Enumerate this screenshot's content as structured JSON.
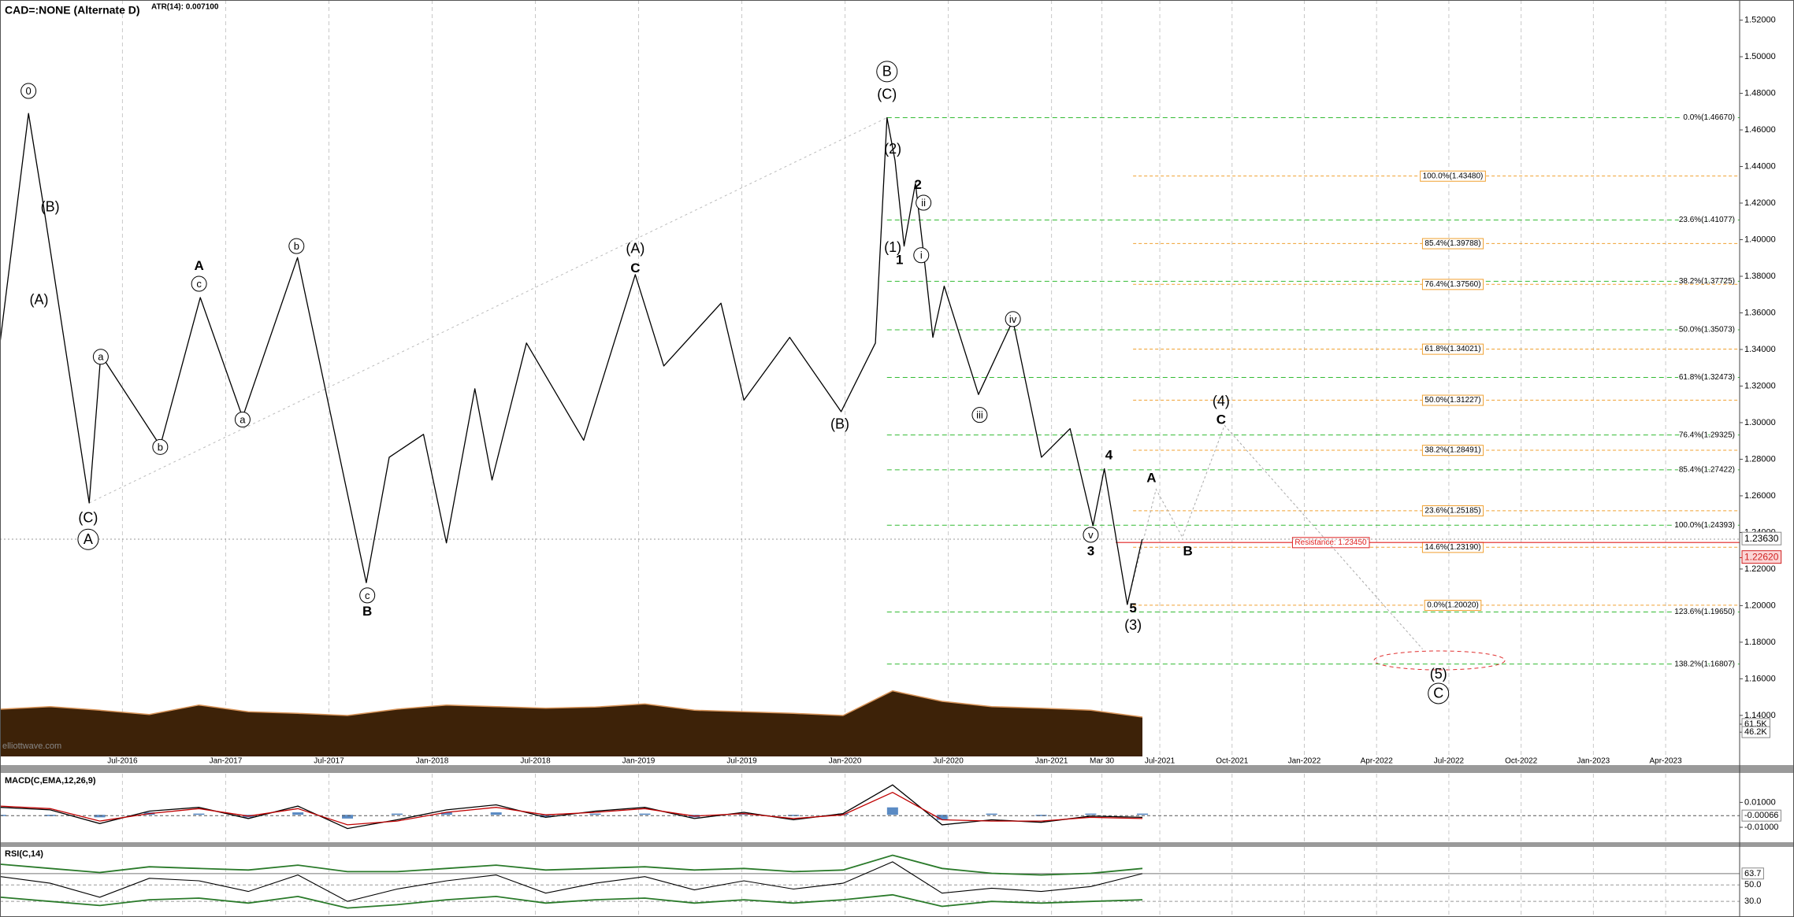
{
  "chart_data": [
    {
      "type": "line",
      "title": "CAD=:NONE (Alternate D)",
      "indicator": "ATR(14): 0.007100",
      "watermark": "elliottwave.com",
      "color": "#000000",
      "x": [
        2015.907,
        2016.045,
        2016.118,
        2016.339,
        2016.395,
        2016.683,
        2016.877,
        2017.082,
        2017.348,
        2017.681,
        2017.792,
        2017.958,
        2018.069,
        2018.207,
        2018.29,
        2018.457,
        2018.734,
        2018.984,
        2019.122,
        2019.399,
        2019.51,
        2019.732,
        2019.981,
        2020.147,
        2020.203,
        2020.242,
        2020.286,
        2020.341,
        2020.386,
        2020.425,
        2020.48,
        2020.646,
        2020.813,
        2020.951,
        2021.09,
        2021.201,
        2021.256,
        2021.367,
        2021.439
      ],
      "values": [
        1.3435,
        1.469,
        1.4183,
        1.2561,
        1.3372,
        1.2873,
        1.3684,
        1.3029,
        1.3902,
        1.2125,
        1.2811,
        1.2936,
        1.2343,
        1.3185,
        1.2686,
        1.3435,
        1.2904,
        1.3809,
        1.331,
        1.3653,
        1.3123,
        1.3466,
        1.306,
        1.3435,
        1.4667,
        1.4433,
        1.3965,
        1.4308,
        1.3871,
        1.3466,
        1.3746,
        1.3154,
        1.3559,
        1.2811,
        1.2967,
        1.2437,
        1.2748,
        1.2006,
        1.2363
      ],
      "xlim": [
        2015.907,
        2023.506
      ],
      "xticks": [
        {
          "value": 2016.5,
          "label": "Jul-2016"
        },
        {
          "value": 2017,
          "label": "Jan-2017"
        },
        {
          "value": 2017.5,
          "label": "Jul-2017"
        },
        {
          "value": 2018,
          "label": "Jan-2018"
        },
        {
          "value": 2018.5,
          "label": "Jul-2018"
        },
        {
          "value": 2019,
          "label": "Jan-2019"
        },
        {
          "value": 2019.5,
          "label": "Jul-2019"
        },
        {
          "value": 2020,
          "label": "Jan-2020"
        },
        {
          "value": 2020.5,
          "label": "Jul-2020"
        },
        {
          "value": 2021,
          "label": "Jan-2021"
        },
        {
          "value": 2021.244,
          "label": "Mar 30"
        },
        {
          "value": 2021.5,
          "label": "Jul-2021"
        },
        {
          "value": 2021.75,
          "label": "Oct-2021"
        },
        {
          "value": 2022,
          "label": "Jan-2022"
        },
        {
          "value": 2022.25,
          "label": "Apr-2022"
        },
        {
          "value": 2022.5,
          "label": "Jul-2022"
        },
        {
          "value": 2022.75,
          "label": "Oct-2022"
        },
        {
          "value": 2023,
          "label": "Jan-2023"
        },
        {
          "value": 2023.25,
          "label": "Apr-2023"
        }
      ],
      "ylim": [
        1.118,
        1.531
      ],
      "yticks": [
        {
          "value": 1.14,
          "label": "1.14000"
        },
        {
          "value": 1.16,
          "label": "1.16000"
        },
        {
          "value": 1.18,
          "label": "1.18000"
        },
        {
          "value": 1.2,
          "label": "1.20000"
        },
        {
          "value": 1.22,
          "label": "1.22000"
        },
        {
          "value": 1.24,
          "label": "1.24000"
        },
        {
          "value": 1.26,
          "label": "1.26000"
        },
        {
          "value": 1.28,
          "label": "1.28000"
        },
        {
          "value": 1.3,
          "label": "1.30000"
        },
        {
          "value": 1.32,
          "label": "1.32000"
        },
        {
          "value": 1.34,
          "label": "1.34000"
        },
        {
          "value": 1.36,
          "label": "1.36000"
        },
        {
          "value": 1.38,
          "label": "1.38000"
        },
        {
          "value": 1.4,
          "label": "1.40000"
        },
        {
          "value": 1.42,
          "label": "1.42000"
        },
        {
          "value": 1.44,
          "label": "1.44000"
        },
        {
          "value": 1.46,
          "label": "1.46000"
        },
        {
          "value": 1.48,
          "label": "1.48000"
        },
        {
          "value": 1.5,
          "label": "1.50000"
        },
        {
          "value": 1.52,
          "label": "1.52000"
        }
      ],
      "last": {
        "value": 1.2363,
        "label": "1.23630"
      },
      "marker": {
        "value": 1.2262,
        "label": "1.22620",
        "color": "#d02020"
      },
      "fib_green": {
        "start": 2020.203,
        "color": "#33bb33",
        "levels": [
          {
            "value": 1.4667,
            "label": "0.0%(1.46670)"
          },
          {
            "value": 1.41077,
            "label": "23.6%(1.41077)"
          },
          {
            "value": 1.37725,
            "label": "38.2%(1.37725)"
          },
          {
            "value": 1.35073,
            "label": "50.0%(1.35073)"
          },
          {
            "value": 1.32473,
            "label": "61.8%(1.32473)"
          },
          {
            "value": 1.29325,
            "label": "76.4%(1.29325)"
          },
          {
            "value": 1.27422,
            "label": "85.4%(1.27422)"
          },
          {
            "value": 1.24393,
            "label": "100.0%(1.24393)"
          },
          {
            "value": 1.1965,
            "label": "123.6%(1.19650)"
          },
          {
            "value": 1.16807,
            "label": "138.2%(1.16807)"
          }
        ]
      },
      "fib_orange": {
        "start": 2021.395,
        "color": "#f0a030",
        "levels": [
          {
            "value": 1.4348,
            "label": "100.0%(1.43480)"
          },
          {
            "value": 1.39788,
            "label": "85.4%(1.39788)"
          },
          {
            "value": 1.3756,
            "label": "76.4%(1.37560)"
          },
          {
            "value": 1.34021,
            "label": "61.8%(1.34021)"
          },
          {
            "value": 1.31227,
            "label": "50.0%(1.31227)"
          },
          {
            "value": 1.28491,
            "label": "38.2%(1.28491)"
          },
          {
            "value": 1.25185,
            "label": "23.6%(1.25185)"
          },
          {
            "value": 1.2319,
            "label": "14.6%(1.23190)"
          },
          {
            "value": 1.2002,
            "label": "0.0%(1.20020)"
          }
        ]
      },
      "resistance": {
        "value": 1.2345,
        "label": "Resistance: 1.23450",
        "start": 2021.311,
        "color": "#e02020"
      },
      "trendlines": [
        {
          "x": [
            2016.339,
            2020.203
          ],
          "values": [
            1.2561,
            1.4667
          ]
        }
      ],
      "projection": {
        "x": [
          2021.367,
          2021.487,
          2021.578,
          2021.724,
          2022.409
        ],
        "values": [
          1.2006,
          1.2636,
          1.2374,
          1.2985,
          1.1763
        ],
        "color": "#aaaaaa"
      },
      "volume": {
        "color": "#3d2208",
        "edge_color": "#d9955a",
        "x": [
          2015.91,
          2016.15,
          2016.39,
          2016.63,
          2016.87,
          2017.11,
          2017.35,
          2017.59,
          2017.83,
          2018.07,
          2018.31,
          2018.55,
          2018.79,
          2019.03,
          2019.27,
          2019.51,
          2019.75,
          2019.99,
          2020.23,
          2020.47,
          2020.71,
          2020.95,
          2021.19,
          2021.44
        ],
        "values": [
          90000,
          95000,
          88000,
          80000,
          98000,
          85000,
          82000,
          78000,
          90000,
          98000,
          95000,
          92000,
          94000,
          100000,
          88000,
          85000,
          82000,
          78000,
          125000,
          105000,
          95000,
          92000,
          88000,
          75000
        ],
        "ylim": [
          0,
          135000
        ],
        "yticks": [
          {
            "value": 61500,
            "label": "61.5K"
          },
          {
            "value": 46200,
            "label": "46.2K"
          }
        ]
      },
      "annotations": [
        {
          "text": "0",
          "x": 2016.045,
          "y": 1.4813,
          "style": "circled"
        },
        {
          "text": "(B)",
          "x": 2016.15,
          "y": 1.418,
          "style": "plain"
        },
        {
          "text": "(A)",
          "x": 2016.096,
          "y": 1.3672,
          "style": "plain"
        },
        {
          "text": "a",
          "x": 2016.395,
          "y": 1.336,
          "style": "circled"
        },
        {
          "text": "(C)",
          "x": 2016.334,
          "y": 1.248,
          "style": "plain"
        },
        {
          "text": "A",
          "x": 2016.334,
          "y": 1.2362,
          "style": "big"
        },
        {
          "text": "b",
          "x": 2016.683,
          "y": 1.2867,
          "style": "circled"
        },
        {
          "text": "A",
          "x": 2016.871,
          "y": 1.3859,
          "style": "bold"
        },
        {
          "text": "c",
          "x": 2016.871,
          "y": 1.3759,
          "style": "circled"
        },
        {
          "text": "a",
          "x": 2017.082,
          "y": 1.3017,
          "style": "circled"
        },
        {
          "text": "b",
          "x": 2017.343,
          "y": 1.3965,
          "style": "circled"
        },
        {
          "text": "c",
          "x": 2017.686,
          "y": 1.2056,
          "style": "circled"
        },
        {
          "text": "B",
          "x": 2017.686,
          "y": 1.1969,
          "style": "bold"
        },
        {
          "text": "(A)",
          "x": 2018.984,
          "y": 1.3952,
          "style": "plain"
        },
        {
          "text": "C",
          "x": 2018.984,
          "y": 1.3846,
          "style": "bold"
        },
        {
          "text": "(B)",
          "x": 2019.975,
          "y": 1.2992,
          "style": "plain"
        },
        {
          "text": "B",
          "x": 2020.203,
          "y": 1.4919,
          "style": "big"
        },
        {
          "text": "(C)",
          "x": 2020.203,
          "y": 1.4795,
          "style": "plain"
        },
        {
          "text": "(2)",
          "x": 2020.231,
          "y": 1.4495,
          "style": "plain"
        },
        {
          "text": "2",
          "x": 2020.353,
          "y": 1.4302,
          "style": "bold"
        },
        {
          "text": "ii",
          "x": 2020.38,
          "y": 1.4202,
          "style": "circled"
        },
        {
          "text": "(1)",
          "x": 2020.231,
          "y": 1.3959,
          "style": "plain"
        },
        {
          "text": "1",
          "x": 2020.264,
          "y": 1.389,
          "style": "bold"
        },
        {
          "text": "i",
          "x": 2020.369,
          "y": 1.3915,
          "style": "circled"
        },
        {
          "text": "iv",
          "x": 2020.813,
          "y": 1.3566,
          "style": "circled"
        },
        {
          "text": "iii",
          "x": 2020.652,
          "y": 1.3042,
          "style": "circled"
        },
        {
          "text": "4",
          "x": 2021.278,
          "y": 1.2823,
          "style": "bold"
        },
        {
          "text": "v",
          "x": 2021.19,
          "y": 1.2387,
          "style": "circled"
        },
        {
          "text": "3",
          "x": 2021.19,
          "y": 1.2299,
          "style": "bold"
        },
        {
          "text": "5",
          "x": 2021.395,
          "y": 1.1987,
          "style": "bold"
        },
        {
          "text": "(3)",
          "x": 2021.395,
          "y": 1.1894,
          "style": "plain"
        },
        {
          "text": "A",
          "x": 2021.471,
          "y": 1.2698,
          "style": "bold"
        },
        {
          "text": "B",
          "x": 2021.597,
          "y": 1.2299,
          "style": "bold"
        },
        {
          "text": "(4)",
          "x": 2021.712,
          "y": 1.3116,
          "style": "plain"
        },
        {
          "text": "C",
          "x": 2021.712,
          "y": 1.3017,
          "style": "bold"
        },
        {
          "text": "(5)",
          "x": 2022.464,
          "y": 1.1626,
          "style": "plain"
        },
        {
          "text": "C",
          "x": 2022.464,
          "y": 1.152,
          "style": "big"
        }
      ]
    },
    {
      "type": "line",
      "title": "MACD(C,EMA,12,26,9)",
      "x": [
        2015.91,
        2016.15,
        2016.39,
        2016.63,
        2016.87,
        2017.11,
        2017.35,
        2017.59,
        2017.83,
        2018.07,
        2018.31,
        2018.55,
        2018.79,
        2019.03,
        2019.27,
        2019.51,
        2019.75,
        2019.99,
        2020.23,
        2020.47,
        2020.71,
        2020.95,
        2021.19,
        2021.44
      ],
      "xlim": [
        2015.907,
        2023.506
      ],
      "series": [
        {
          "color": "#000000",
          "values": [
            0.006,
            0.004,
            -0.007,
            0.003,
            0.006,
            -0.003,
            0.007,
            -0.011,
            -0.004,
            0.004,
            0.008,
            -0.002,
            0.003,
            0.006,
            -0.003,
            0.002,
            -0.004,
            0.001,
            0.024,
            -0.008,
            -0.004,
            -0.006,
            -0.001,
            -0.002
          ]
        },
        {
          "color": "#c00000",
          "values": [
            0.007,
            0.005,
            -0.005,
            0.001,
            0.005,
            -0.001,
            0.005,
            -0.008,
            -0.005,
            0.002,
            0.006,
            0,
            0.002,
            0.005,
            -0.001,
            0.001,
            -0.003,
            0,
            0.018,
            -0.004,
            -0.005,
            -0.005,
            -0.002,
            -0.003
          ]
        }
      ],
      "histogram": {
        "color": "#5b8bc4",
        "values": [
          -0.001,
          -0.001,
          -0.002,
          0.002,
          0.001,
          -0.002,
          0.002,
          -0.003,
          0.001,
          0.002,
          0.002,
          -0.002,
          0.001,
          0.001,
          -0.002,
          0.001,
          -0.001,
          0.001,
          0.006,
          -0.004,
          0.001,
          -0.001,
          0.001,
          0.001
        ]
      },
      "ylim": [
        -0.022,
        0.033
      ],
      "yticks": [
        {
          "value": 0.01,
          "label": "0.01000"
        },
        {
          "value": -0.01,
          "label": "-0.01000"
        }
      ],
      "last": {
        "value": -0.00066,
        "label": "-0.00066"
      }
    },
    {
      "type": "line",
      "title": "RSI(C,14)",
      "x": [
        2015.91,
        2016.15,
        2016.39,
        2016.63,
        2016.87,
        2017.11,
        2017.35,
        2017.59,
        2017.83,
        2018.07,
        2018.31,
        2018.55,
        2018.79,
        2019.03,
        2019.27,
        2019.51,
        2019.75,
        2019.99,
        2020.23,
        2020.47,
        2020.71,
        2020.95,
        2021.19,
        2021.44
      ],
      "xlim": [
        2015.907,
        2023.506
      ],
      "series": [
        {
          "color": "#000000",
          "values": [
            60,
            52,
            35,
            58,
            55,
            42,
            62,
            30,
            45,
            55,
            62,
            40,
            52,
            60,
            44,
            55,
            45,
            52,
            78,
            40,
            46,
            42,
            48,
            63.7
          ]
        },
        {
          "color": "#2a7a2a",
          "values": [
            75,
            70,
            65,
            72,
            70,
            68,
            74,
            66,
            66,
            70,
            74,
            68,
            70,
            72,
            68,
            70,
            66,
            68,
            86,
            70,
            64,
            62,
            64,
            70
          ]
        },
        {
          "color": "#2a7a2a",
          "values": [
            35,
            30,
            25,
            32,
            34,
            28,
            36,
            22,
            26,
            32,
            36,
            28,
            32,
            34,
            28,
            32,
            28,
            32,
            38,
            24,
            30,
            28,
            30,
            32
          ]
        }
      ],
      "ylim": [
        13,
        96
      ],
      "yticks": [
        {
          "value": 50,
          "label": "50.0"
        },
        {
          "value": 30,
          "label": "30.0"
        }
      ],
      "last": {
        "value": 63.7,
        "label": "63.7"
      }
    }
  ]
}
